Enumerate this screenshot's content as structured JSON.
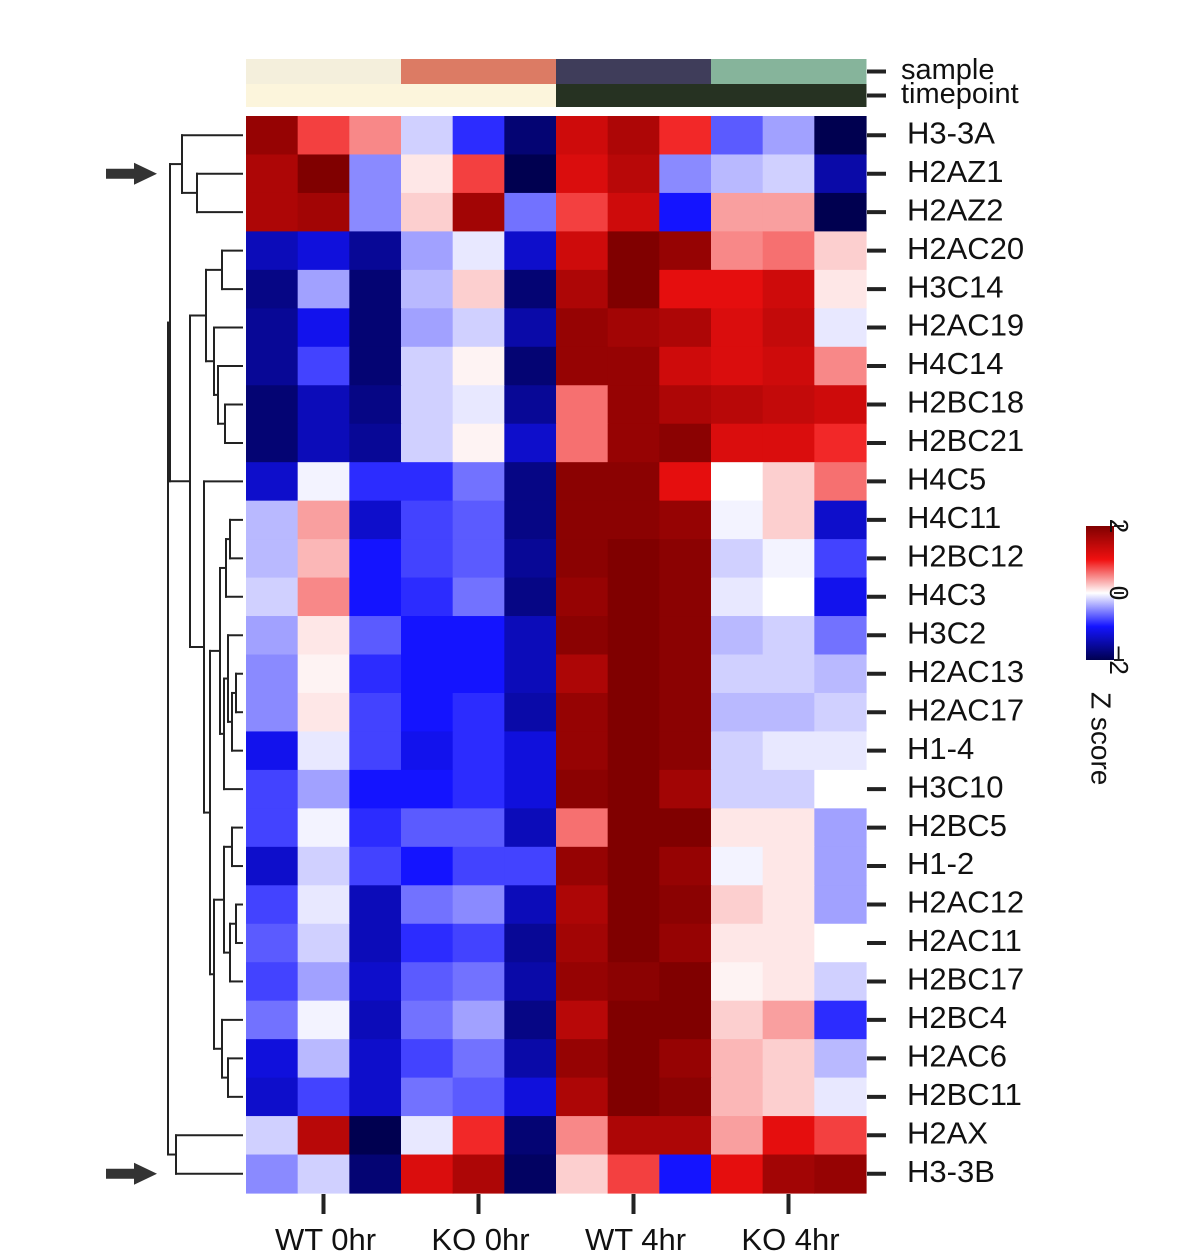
{
  "chart_data": {
    "type": "heatmap",
    "title": "",
    "annotation_tracks": [
      {
        "name": "sample",
        "groups": [
          {
            "label": "WT 0hr",
            "color": "#f4efdc"
          },
          {
            "label": "KO 0hr",
            "color": "#dc7b64"
          },
          {
            "label": "WT 4hr",
            "color": "#3f3d5a"
          },
          {
            "label": "KO 4hr",
            "color": "#86b49b"
          }
        ]
      },
      {
        "name": "timepoint",
        "groups": [
          {
            "label": "0hr",
            "color": "#fcf5dc"
          },
          {
            "label": "4hr",
            "color": "#263222"
          }
        ]
      }
    ],
    "x_group_labels": [
      "WT 0hr",
      "KO 0hr",
      "WT 4hr",
      "KO 4hr"
    ],
    "replicates_per_group": 3,
    "rows": [
      "H3-3A",
      "H2AZ1",
      "H2AZ2",
      "H2AC20",
      "H3C14",
      "H2AC19",
      "H4C14",
      "H2BC18",
      "H2BC21",
      "H4C5",
      "H4C11",
      "H2BC12",
      "H4C3",
      "H3C2",
      "H2AC13",
      "H2AC17",
      "H1-4",
      "H3C10",
      "H2BC5",
      "H1-2",
      "H2AC12",
      "H2AC11",
      "H2BC17",
      "H2BC4",
      "H2AC6",
      "H2BC11",
      "H2AX",
      "H3-3B"
    ],
    "highlighted_rows": [
      "H2AZ1",
      "H3-3B"
    ],
    "values": [
      [
        1.8,
        0.8,
        0.5,
        -0.2,
        -0.9,
        -1.8,
        1.3,
        1.6,
        0.9,
        -0.7,
        -0.4,
        -2.0
      ],
      [
        1.6,
        2.0,
        -0.5,
        0.1,
        0.8,
        -2.0,
        1.2,
        1.5,
        -0.5,
        -0.3,
        -0.2,
        -1.5
      ],
      [
        1.6,
        1.7,
        -0.5,
        0.2,
        1.7,
        -0.6,
        0.8,
        1.3,
        -1.0,
        0.4,
        0.4,
        -2.4
      ],
      [
        -1.4,
        -1.2,
        -1.6,
        -0.4,
        -0.1,
        -1.3,
        1.3,
        2.0,
        1.8,
        0.5,
        0.6,
        0.2
      ],
      [
        -1.7,
        -0.4,
        -1.8,
        -0.3,
        0.2,
        -1.8,
        1.6,
        2.0,
        1.1,
        1.1,
        1.3,
        0.1
      ],
      [
        -1.6,
        -1.1,
        -1.8,
        -0.4,
        -0.2,
        -1.5,
        1.8,
        1.7,
        1.6,
        1.2,
        1.4,
        -0.1
      ],
      [
        -1.6,
        -0.8,
        -1.8,
        -0.2,
        0.05,
        -1.8,
        1.8,
        1.8,
        1.3,
        1.2,
        1.3,
        0.5
      ],
      [
        -1.8,
        -1.4,
        -1.7,
        -0.2,
        -0.1,
        -1.6,
        0.6,
        1.8,
        1.6,
        1.5,
        1.4,
        1.3
      ],
      [
        -1.8,
        -1.4,
        -1.6,
        -0.2,
        0.05,
        -1.3,
        0.6,
        1.8,
        1.9,
        1.2,
        1.2,
        0.9
      ],
      [
        -1.3,
        -0.05,
        -0.9,
        -0.9,
        -0.6,
        -1.7,
        1.9,
        1.9,
        1.1,
        0.0,
        0.2,
        0.6
      ],
      [
        -0.3,
        0.4,
        -1.3,
        -0.8,
        -0.7,
        -1.7,
        1.9,
        1.9,
        1.8,
        -0.05,
        0.2,
        -1.3
      ],
      [
        -0.3,
        0.3,
        -1.0,
        -0.8,
        -0.7,
        -1.6,
        1.9,
        2.0,
        1.9,
        -0.2,
        -0.05,
        -0.8
      ],
      [
        -0.2,
        0.5,
        -1.0,
        -0.9,
        -0.6,
        -1.7,
        1.8,
        2.0,
        1.9,
        -0.1,
        0.0,
        -1.1
      ],
      [
        -0.4,
        0.1,
        -0.7,
        -1.0,
        -1.0,
        -1.4,
        1.9,
        2.0,
        1.9,
        -0.3,
        -0.2,
        -0.6
      ],
      [
        -0.5,
        0.05,
        -0.9,
        -1.0,
        -1.0,
        -1.4,
        1.6,
        2.2,
        1.9,
        -0.2,
        -0.2,
        -0.3
      ],
      [
        -0.5,
        0.1,
        -0.8,
        -1.0,
        -0.9,
        -1.5,
        1.8,
        2.0,
        1.9,
        -0.3,
        -0.3,
        -0.2
      ],
      [
        -1.1,
        -0.1,
        -0.8,
        -1.1,
        -0.9,
        -1.2,
        1.8,
        2.0,
        1.9,
        -0.2,
        -0.1,
        -0.1
      ],
      [
        -0.8,
        -0.4,
        -1.0,
        -1.0,
        -0.9,
        -1.2,
        1.9,
        2.0,
        1.7,
        -0.2,
        -0.2,
        0.0
      ],
      [
        -0.8,
        -0.05,
        -0.9,
        -0.7,
        -0.7,
        -1.4,
        0.6,
        2.0,
        2.3,
        0.1,
        0.1,
        -0.4
      ],
      [
        -1.3,
        -0.2,
        -0.8,
        -1.0,
        -0.8,
        -0.8,
        1.8,
        2.1,
        1.8,
        -0.05,
        0.1,
        -0.4
      ],
      [
        -0.8,
        -0.1,
        -1.4,
        -0.6,
        -0.5,
        -1.4,
        1.6,
        2.1,
        1.9,
        0.2,
        0.1,
        -0.4
      ],
      [
        -0.7,
        -0.2,
        -1.4,
        -0.9,
        -0.8,
        -1.6,
        1.7,
        2.1,
        1.8,
        0.1,
        0.1,
        0.0
      ],
      [
        -0.8,
        -0.4,
        -1.3,
        -0.7,
        -0.6,
        -1.5,
        1.8,
        1.9,
        2.0,
        0.05,
        0.1,
        -0.2
      ],
      [
        -0.6,
        -0.05,
        -1.4,
        -0.6,
        -0.4,
        -1.7,
        1.5,
        2.0,
        2.0,
        0.2,
        0.4,
        -0.9
      ],
      [
        -1.2,
        -0.3,
        -1.3,
        -0.8,
        -0.6,
        -1.5,
        1.8,
        2.0,
        1.8,
        0.3,
        0.2,
        -0.3
      ],
      [
        -1.3,
        -0.8,
        -1.3,
        -0.6,
        -0.7,
        -1.2,
        1.6,
        2.1,
        1.9,
        0.3,
        0.2,
        -0.1
      ],
      [
        -0.2,
        1.5,
        -2.3,
        -0.1,
        0.9,
        -1.8,
        0.5,
        1.6,
        1.6,
        0.4,
        1.1,
        0.8
      ],
      [
        -0.5,
        -0.2,
        -1.8,
        1.2,
        1.6,
        -1.9,
        0.2,
        0.8,
        -1.0,
        1.1,
        1.7,
        1.8
      ]
    ],
    "colorbar": {
      "label": "Z score",
      "ticks": [
        "2",
        "0",
        "−2"
      ],
      "min": -2,
      "max": 2
    },
    "colors": {
      "low": "#000050",
      "neg": "#1414ff",
      "zero": "#ffffff",
      "pos": "#f01010",
      "high": "#800000",
      "line": "#222222"
    }
  }
}
